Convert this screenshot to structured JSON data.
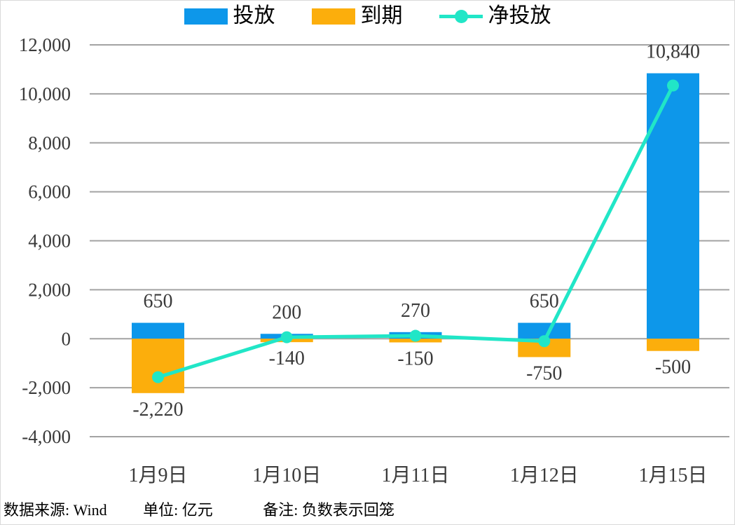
{
  "legend": [
    {
      "label": "投放",
      "type": "bar",
      "color": "#0D97EA"
    },
    {
      "label": "到期",
      "type": "bar",
      "color": "#FCAE0C"
    },
    {
      "label": "净投放",
      "type": "line",
      "color": "#21E6C7"
    }
  ],
  "chart_data": {
    "type": "bar",
    "categories": [
      "1月9日",
      "1月10日",
      "1月11日",
      "1月12日",
      "1月15日"
    ],
    "series": [
      {
        "name": "投放",
        "type": "bar",
        "color": "#0D97EA",
        "values": [
          650,
          200,
          270,
          650,
          10840
        ],
        "labels": [
          "650",
          "200",
          "270",
          "650",
          "10,840"
        ]
      },
      {
        "name": "到期",
        "type": "bar",
        "color": "#FCAE0C",
        "values": [
          -2220,
          -140,
          -150,
          -750,
          -500
        ],
        "labels": [
          "-2,220",
          "-140",
          "-150",
          "-750",
          "-500"
        ]
      },
      {
        "name": "净投放",
        "type": "line",
        "color": "#21E6C7",
        "values": [
          -1570,
          60,
          120,
          -100,
          10340
        ]
      }
    ],
    "ylim": [
      -4000,
      12000
    ],
    "ytick_step": 2000,
    "yticks": [
      {
        "value": 12000,
        "label": "12,000"
      },
      {
        "value": 10000,
        "label": "10,000"
      },
      {
        "value": 8000,
        "label": "8,000"
      },
      {
        "value": 6000,
        "label": "6,000"
      },
      {
        "value": 4000,
        "label": "4,000"
      },
      {
        "value": 2000,
        "label": "2,000"
      },
      {
        "value": 0,
        "label": "0"
      },
      {
        "value": -2000,
        "label": "-2,000"
      },
      {
        "value": -4000,
        "label": "-4,000"
      }
    ],
    "grid": true,
    "legend_position": "top",
    "gridline_color": "#A3A3A3",
    "label_color": "#3A3A3A",
    "tick_color": "#3A3A3A"
  },
  "footer": {
    "source": "数据来源: Wind",
    "unit": "单位: 亿元",
    "note": "备注: 负数表示回笼"
  }
}
